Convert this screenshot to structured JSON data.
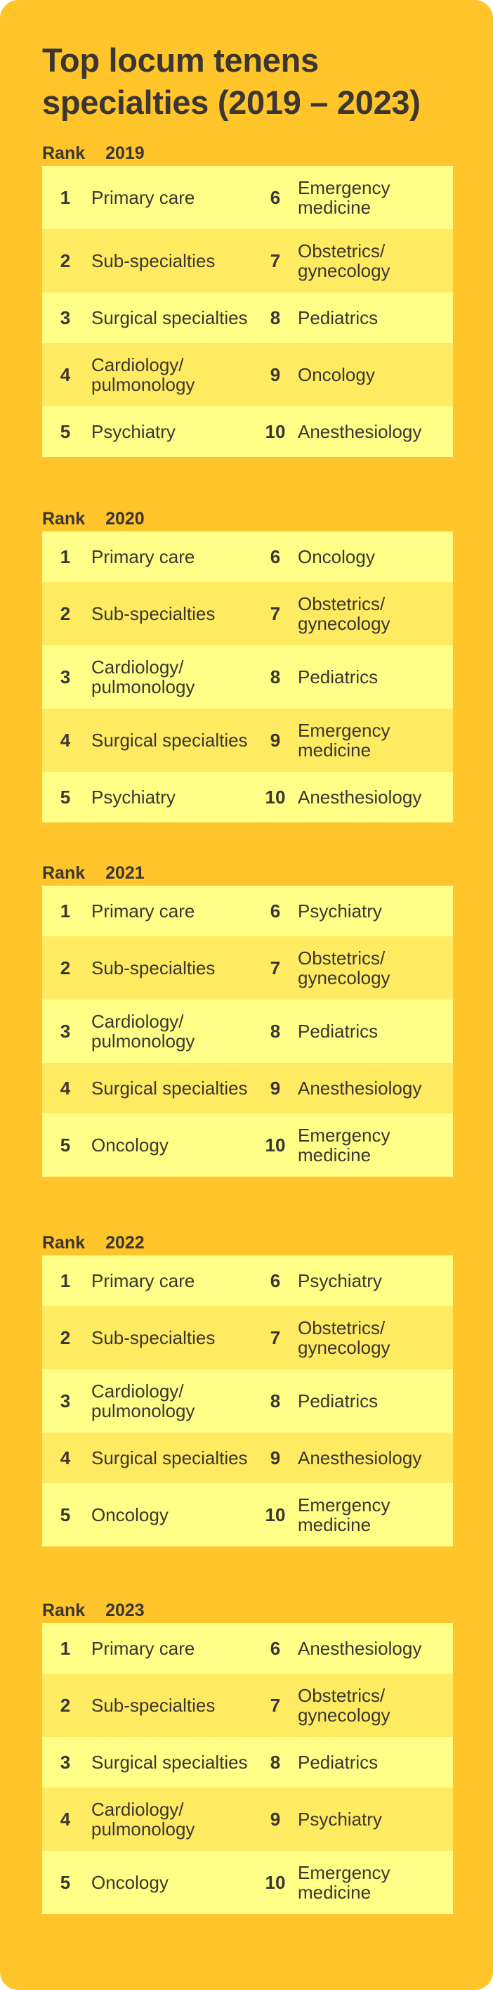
{
  "title": "Top locum tenens specialties (2019 – 2023)",
  "rank_label": "Rank",
  "colors": {
    "background": "#FFC52B",
    "row_light": "#FFFF88",
    "row_alt": "#FFEB62",
    "text": "#3b3630"
  },
  "years": [
    {
      "year": "2019",
      "items": [
        "Primary care",
        "Sub-specialties",
        "Surgical specialties",
        "Cardiology/ pulmonology",
        "Psychiatry",
        "Emergency medicine",
        "Obstetrics/ gynecology",
        "Pediatrics",
        "Oncology",
        "Anesthesiology"
      ]
    },
    {
      "year": "2020",
      "items": [
        "Primary care",
        "Sub-specialties",
        "Cardiology/ pulmonology",
        "Surgical specialties",
        "Psychiatry",
        "Oncology",
        "Obstetrics/ gynecology",
        "Pediatrics",
        "Emergency medicine",
        "Anesthesiology"
      ]
    },
    {
      "year": "2021",
      "items": [
        "Primary care",
        "Sub-specialties",
        "Cardiology/ pulmonology",
        "Surgical specialties",
        "Oncology",
        "Psychiatry",
        "Obstetrics/ gynecology",
        "Pediatrics",
        "Anesthesiology",
        "Emergency medicine"
      ]
    },
    {
      "year": "2022",
      "items": [
        "Primary care",
        "Sub-specialties",
        "Cardiology/ pulmonology",
        "Surgical specialties",
        "Oncology",
        "Psychiatry",
        "Obstetrics/ gynecology",
        "Pediatrics",
        "Anesthesiology",
        "Emergency medicine"
      ]
    },
    {
      "year": "2023",
      "items": [
        "Primary care",
        "Sub-specialties",
        "Surgical specialties",
        "Cardiology/ pulmonology",
        "Oncology",
        "Anesthesiology",
        "Obstetrics/ gynecology",
        "Pediatrics",
        "Psychiatry",
        "Emergency medicine"
      ]
    }
  ],
  "ranks": [
    "1",
    "2",
    "3",
    "4",
    "5",
    "6",
    "7",
    "8",
    "9",
    "10"
  ]
}
